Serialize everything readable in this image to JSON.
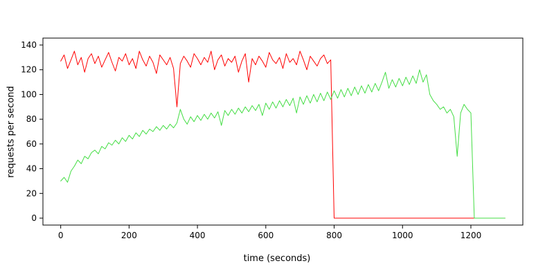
{
  "chart_data": {
    "type": "line",
    "title": "",
    "xlabel": "time (seconds)",
    "ylabel": "requests per second",
    "xlim": [
      0,
      1300
    ],
    "ylim": [
      0,
      140
    ],
    "xticks": [
      0,
      200,
      400,
      600,
      800,
      1000,
      1200
    ],
    "yticks": [
      0,
      20,
      40,
      60,
      80,
      100,
      120,
      140
    ],
    "grid": false,
    "legend_position": "none",
    "colors": {
      "axis": "#000000",
      "red_series": "#ff0000",
      "green_series": "#44dd44"
    },
    "x": [
      0,
      10,
      20,
      30,
      40,
      50,
      60,
      70,
      80,
      90,
      100,
      110,
      120,
      130,
      140,
      150,
      160,
      170,
      180,
      190,
      200,
      210,
      220,
      230,
      240,
      250,
      260,
      270,
      280,
      290,
      300,
      310,
      320,
      330,
      340,
      350,
      360,
      370,
      380,
      390,
      400,
      410,
      420,
      430,
      440,
      450,
      460,
      470,
      480,
      490,
      500,
      510,
      520,
      530,
      540,
      550,
      560,
      570,
      580,
      590,
      600,
      610,
      620,
      630,
      640,
      650,
      660,
      670,
      680,
      690,
      700,
      710,
      720,
      730,
      740,
      750,
      760,
      770,
      780,
      790,
      800,
      810,
      820,
      830,
      840,
      850,
      860,
      870,
      880,
      890,
      900,
      910,
      920,
      930,
      940,
      950,
      960,
      970,
      980,
      990,
      1000,
      1010,
      1020,
      1030,
      1040,
      1050,
      1060,
      1070,
      1080,
      1090,
      1100,
      1110,
      1120,
      1130,
      1140,
      1150,
      1160,
      1170,
      1180,
      1190,
      1200,
      1210,
      1220,
      1230,
      1240,
      1250,
      1260,
      1270,
      1280,
      1290,
      1300
    ],
    "series": [
      {
        "name": "red",
        "color": "#ff0000",
        "values": [
          127,
          132,
          121,
          128,
          135,
          124,
          130,
          118,
          129,
          133,
          125,
          131,
          122,
          128,
          134,
          126,
          119,
          130,
          127,
          133,
          124,
          129,
          121,
          135,
          128,
          123,
          131,
          126,
          117,
          132,
          128,
          124,
          130,
          121,
          90,
          125,
          131,
          127,
          122,
          133,
          129,
          124,
          130,
          126,
          135,
          120,
          128,
          132,
          123,
          129,
          126,
          131,
          118,
          127,
          133,
          110,
          129,
          124,
          131,
          127,
          122,
          134,
          128,
          125,
          130,
          121,
          133,
          126,
          129,
          124,
          135,
          128,
          120,
          131,
          127,
          123,
          129,
          132,
          125,
          128,
          0,
          0,
          0,
          0,
          0,
          0,
          0,
          0,
          0,
          0,
          0,
          0,
          0,
          0,
          0,
          0,
          0,
          0,
          0,
          0,
          0,
          0,
          0,
          0,
          0,
          0,
          0,
          0,
          0,
          0,
          0,
          0,
          0,
          0,
          0,
          0,
          0,
          0,
          0,
          0,
          0,
          0,
          0,
          0,
          0,
          0,
          0,
          0,
          0,
          0,
          0
        ]
      },
      {
        "name": "green",
        "color": "#44dd44",
        "values": [
          30,
          33,
          29,
          38,
          42,
          47,
          44,
          50,
          48,
          53,
          55,
          52,
          58,
          56,
          61,
          59,
          63,
          60,
          65,
          62,
          67,
          64,
          69,
          66,
          71,
          68,
          72,
          70,
          74,
          71,
          75,
          72,
          76,
          73,
          77,
          88,
          80,
          76,
          82,
          78,
          83,
          79,
          84,
          80,
          85,
          81,
          86,
          75,
          87,
          83,
          88,
          84,
          89,
          85,
          90,
          86,
          91,
          87,
          92,
          83,
          93,
          88,
          94,
          89,
          95,
          90,
          96,
          91,
          97,
          85,
          98,
          92,
          99,
          93,
          100,
          94,
          101,
          95,
          102,
          96,
          103,
          97,
          104,
          98,
          105,
          99,
          106,
          100,
          107,
          101,
          108,
          102,
          109,
          103,
          110,
          118,
          105,
          112,
          106,
          113,
          107,
          114,
          108,
          115,
          109,
          120,
          110,
          116,
          100,
          95,
          92,
          88,
          90,
          85,
          88,
          82,
          50,
          85,
          92,
          88,
          85,
          0,
          0,
          0,
          0,
          0,
          0,
          0,
          0,
          0,
          0
        ]
      }
    ]
  }
}
